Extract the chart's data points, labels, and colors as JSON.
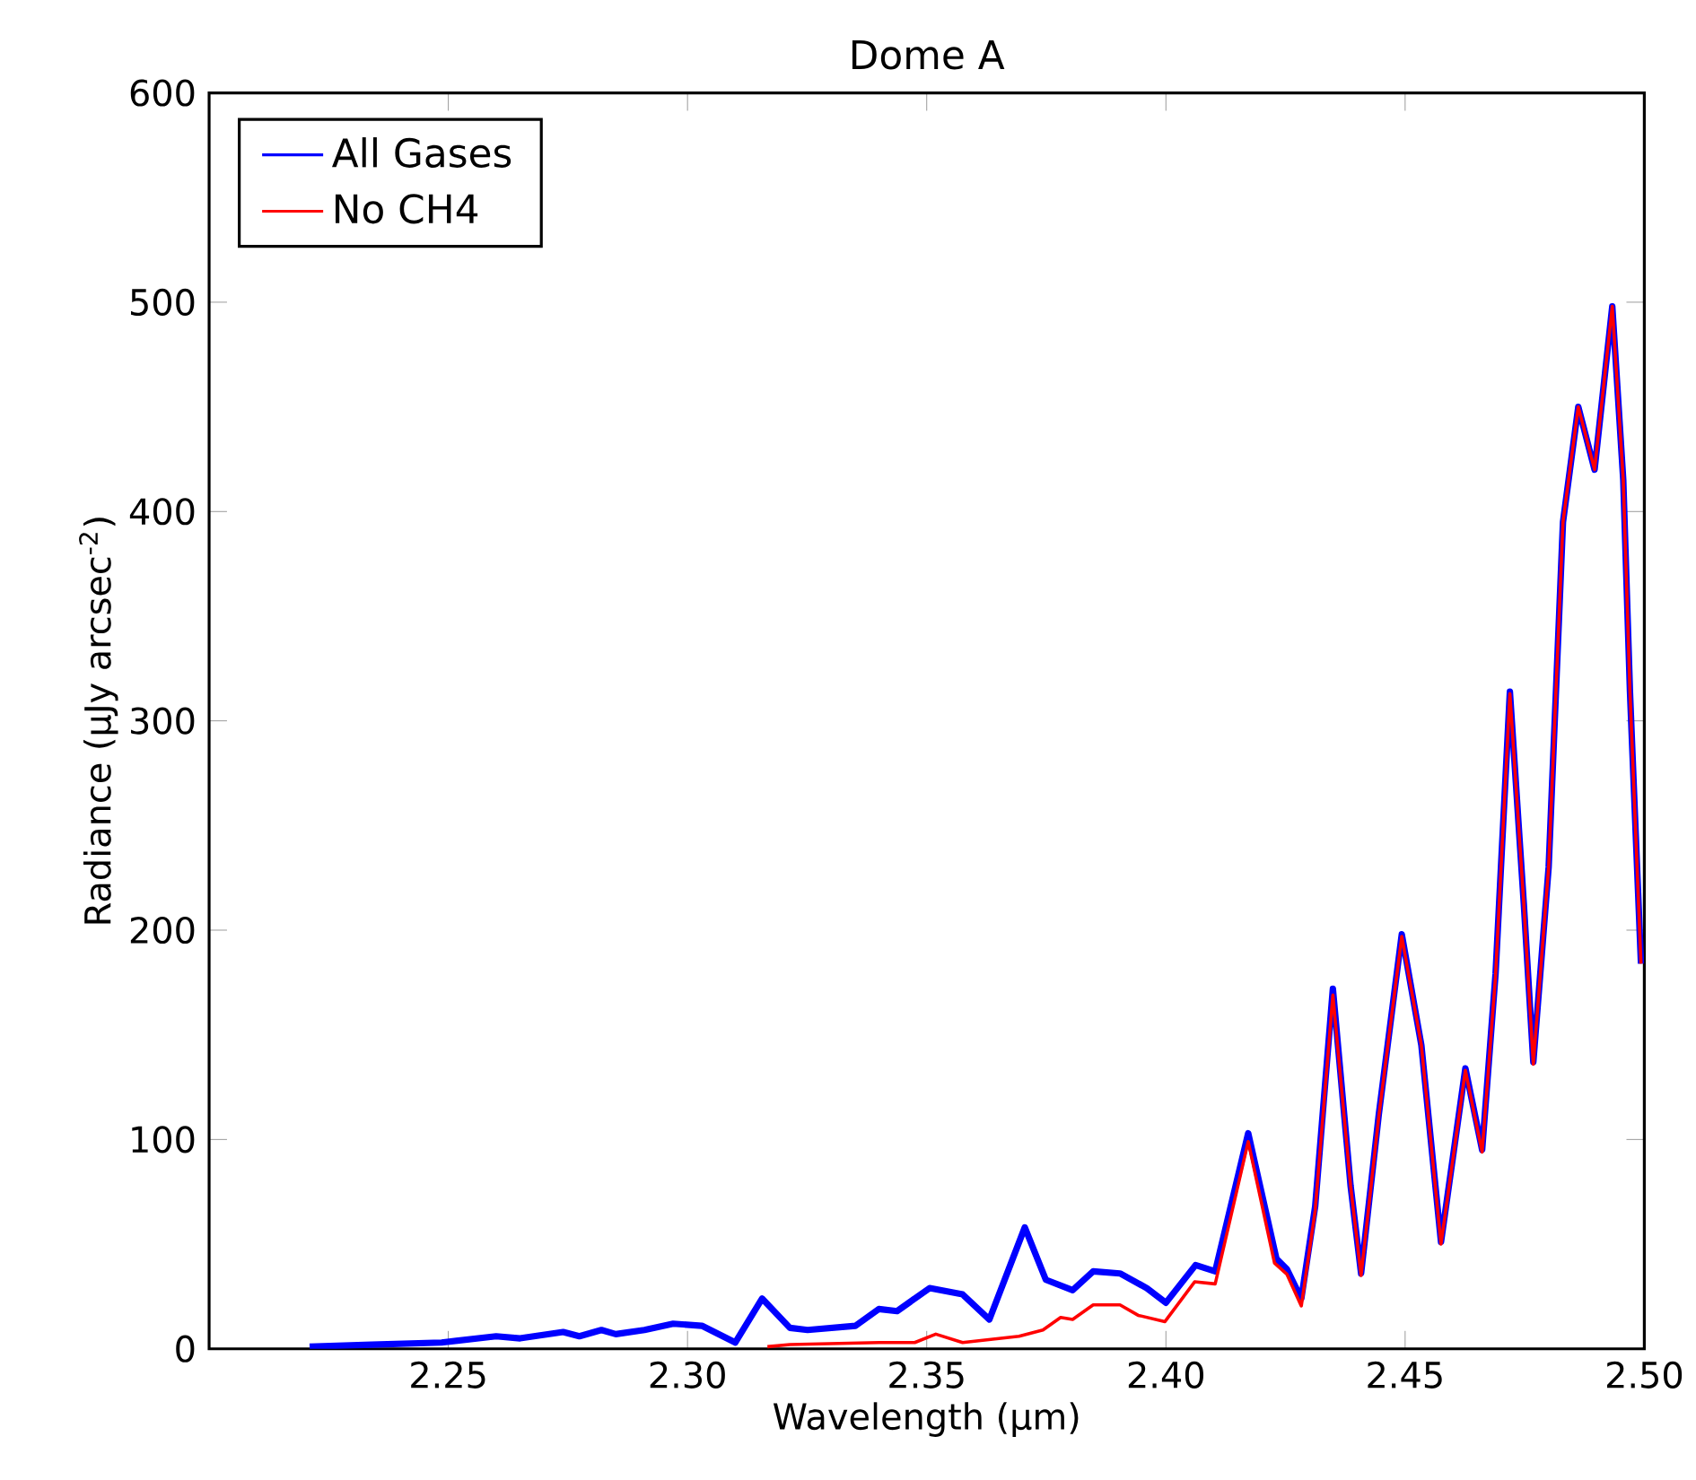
{
  "chart_data": {
    "type": "line",
    "title": "Dome A",
    "xlabel": "Wavelength (μm)",
    "ylabel": "Radiance (μJy arcsec$^{-2}$)",
    "xlim": [
      2.2,
      2.5
    ],
    "ylim": [
      0,
      600
    ],
    "xticks": [
      2.25,
      {
        "value": 2.3,
        "label": "2.30"
      },
      2.35,
      {
        "value": 2.4,
        "label": "2.40"
      },
      2.45,
      {
        "value": 2.5,
        "label": "2.50"
      }
    ],
    "yticks": [
      0,
      100,
      200,
      300,
      400,
      500,
      600
    ],
    "legend": "top left",
    "grid": false,
    "marker": "none",
    "line_style": "solid",
    "series": [
      {
        "name": "All Gases",
        "color": "#0000ff",
        "x": [
          2.221,
          2.234,
          2.2486,
          2.26,
          2.265,
          2.274,
          2.2774,
          2.282,
          2.285,
          2.291,
          2.297,
          2.303,
          2.31,
          2.3156,
          2.3214,
          2.3251,
          2.3351,
          2.34,
          2.3438,
          2.3506,
          2.3575,
          2.3631,
          2.3705,
          2.3749,
          2.3805,
          2.3848,
          2.3904,
          2.396,
          2.4,
          2.4062,
          2.4103,
          2.4172,
          2.4231,
          2.4253,
          2.4283,
          2.4312,
          2.4349,
          2.4386,
          2.4408,
          2.4445,
          2.4493,
          2.4534,
          2.4575,
          2.4626,
          2.4661,
          2.4689,
          2.4719,
          2.4748,
          2.4768,
          2.48,
          2.483,
          2.4862,
          2.4896,
          2.4933,
          2.4956,
          2.497,
          2.4993
        ],
        "values": [
          1,
          2,
          3,
          6,
          5,
          8,
          6,
          9,
          7,
          9,
          12,
          11,
          3,
          24,
          10,
          9,
          11,
          19,
          18,
          29,
          26,
          14,
          58,
          33,
          28,
          37,
          36,
          29,
          22,
          40,
          37,
          103,
          43,
          38,
          24,
          68,
          172,
          78,
          36,
          112,
          198,
          145,
          51,
          134,
          95,
          179,
          314,
          213,
          137,
          230,
          395,
          450,
          420,
          498,
          415,
          314,
          184
        ]
      },
      {
        "name": "No CH4",
        "color": "#ff0000",
        "x": [
          2.3167,
          2.3214,
          2.34,
          2.3475,
          2.3519,
          2.3575,
          2.3693,
          2.3743,
          2.378,
          2.3805,
          2.3848,
          2.3904,
          2.3942,
          2.3998,
          2.406,
          2.4103,
          2.4172,
          2.4227,
          2.4253,
          2.4283,
          2.4312,
          2.4349,
          2.4386,
          2.4408,
          2.4445,
          2.4493,
          2.4534,
          2.4575,
          2.4626,
          2.4661,
          2.4689,
          2.4719,
          2.4748,
          2.4768,
          2.48,
          2.483,
          2.4862,
          2.4896,
          2.4933,
          2.4956,
          2.497,
          2.4993
        ],
        "values": [
          1,
          2,
          3,
          3,
          7,
          3,
          6,
          9,
          15,
          14,
          21,
          21,
          16,
          13,
          32,
          31,
          99,
          41,
          35.6,
          20.5,
          66,
          169,
          78,
          35,
          111,
          197,
          145,
          50,
          133,
          94,
          178,
          313,
          213,
          136,
          230,
          395,
          450,
          420,
          498,
          415,
          314,
          184
        ]
      }
    ]
  }
}
